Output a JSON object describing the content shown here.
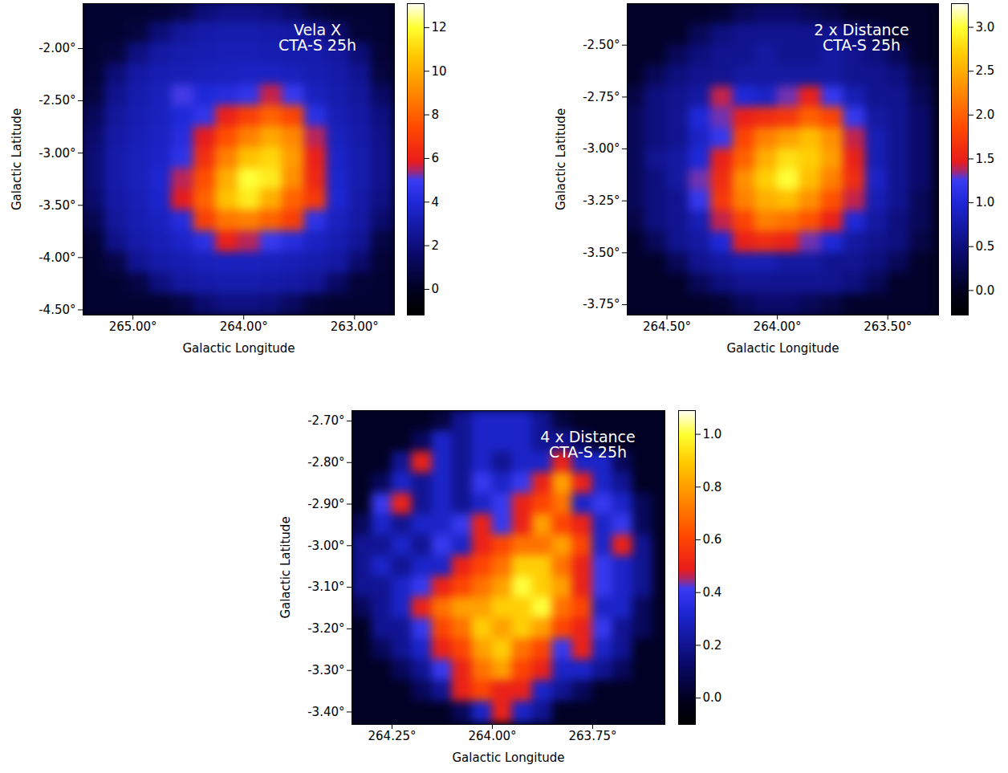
{
  "chart_data": [
    {
      "type": "heatmap",
      "annotation": "Vela X\nCTA-S 25h",
      "x_label": "Galactic Longitude",
      "y_label": "Galactic Latitude",
      "x": [
        265.35,
        265.15,
        264.95,
        264.75,
        264.55,
        264.35,
        264.15,
        263.95,
        263.75,
        263.55,
        263.35,
        263.15,
        262.95,
        262.75
      ],
      "y": [
        -1.65,
        -1.85,
        -2.05,
        -2.25,
        -2.45,
        -2.65,
        -2.85,
        -3.05,
        -3.25,
        -3.45,
        -3.65,
        -3.85,
        -4.05,
        -4.25,
        -4.45
      ],
      "values": [
        [
          0.3,
          0.3,
          0.3,
          0.4,
          0.8,
          1.8,
          2.2,
          2.2,
          2.0,
          1.5,
          0.6,
          0.3,
          0.3,
          0.3
        ],
        [
          0.3,
          0.3,
          0.6,
          1.8,
          2.6,
          2.9,
          3.0,
          3.0,
          2.9,
          2.8,
          2.5,
          1.6,
          0.4,
          0.3
        ],
        [
          0.3,
          0.6,
          2.0,
          2.8,
          3.0,
          3.1,
          3.2,
          3.2,
          3.1,
          3.0,
          3.0,
          2.7,
          1.8,
          0.4
        ],
        [
          0.4,
          1.8,
          2.8,
          3.1,
          3.2,
          3.3,
          3.4,
          3.5,
          3.5,
          3.3,
          3.1,
          2.9,
          2.4,
          0.6
        ],
        [
          0.6,
          2.3,
          3.0,
          3.3,
          5.0,
          4.0,
          4.2,
          4.6,
          5.6,
          4.8,
          3.4,
          3.0,
          2.6,
          1.4
        ],
        [
          1.2,
          2.6,
          3.1,
          3.4,
          4.0,
          4.6,
          6.0,
          7.0,
          8.0,
          7.2,
          4.4,
          3.2,
          2.8,
          2.0
        ],
        [
          1.6,
          2.8,
          3.2,
          3.5,
          4.2,
          5.8,
          7.5,
          8.8,
          9.8,
          9.0,
          5.5,
          3.4,
          2.9,
          2.2
        ],
        [
          1.8,
          2.9,
          3.3,
          3.6,
          4.5,
          6.5,
          8.8,
          10.5,
          11.0,
          9.5,
          6.0,
          3.6,
          3.0,
          2.3
        ],
        [
          1.8,
          2.9,
          3.3,
          3.8,
          5.5,
          7.5,
          10.0,
          12.0,
          11.5,
          9.2,
          6.2,
          3.7,
          3.0,
          2.3
        ],
        [
          1.6,
          2.8,
          3.2,
          3.7,
          5.8,
          8.0,
          10.5,
          11.5,
          10.0,
          8.0,
          6.8,
          3.8,
          2.9,
          2.1
        ],
        [
          1.0,
          2.6,
          3.1,
          3.4,
          4.2,
          7.0,
          8.5,
          8.8,
          8.0,
          7.0,
          4.5,
          3.4,
          2.8,
          1.6
        ],
        [
          0.4,
          2.2,
          2.9,
          3.2,
          3.6,
          4.4,
          6.0,
          5.5,
          4.8,
          4.2,
          3.5,
          3.1,
          2.5,
          0.7
        ],
        [
          0.3,
          0.8,
          2.4,
          2.9,
          3.1,
          3.3,
          3.4,
          3.4,
          3.3,
          3.2,
          3.0,
          2.8,
          1.6,
          0.4
        ],
        [
          0.3,
          0.3,
          0.7,
          2.0,
          2.7,
          2.9,
          3.0,
          3.0,
          2.9,
          2.8,
          2.5,
          1.4,
          0.4,
          0.3
        ],
        [
          0.3,
          0.3,
          0.3,
          0.3,
          0.7,
          1.6,
          2.1,
          2.1,
          1.9,
          1.3,
          0.5,
          0.3,
          0.3,
          0.3
        ]
      ],
      "xlim": [
        265.45,
        262.64
      ],
      "ylim": [
        -4.55,
        -1.57
      ],
      "xticks": [
        {
          "value": 265,
          "label": "265.00°"
        },
        {
          "value": 264,
          "label": "264.00°"
        },
        {
          "value": 263,
          "label": "263.00°"
        }
      ],
      "yticks": [
        {
          "value": -2,
          "label": "-2.00°"
        },
        {
          "value": -2.5,
          "label": "-2.50°"
        },
        {
          "value": -3,
          "label": "-3.00°"
        },
        {
          "value": -3.5,
          "label": "-3.50°"
        },
        {
          "value": -4,
          "label": "-4.00°"
        },
        {
          "value": -4.5,
          "label": "-4.50°"
        }
      ],
      "colorbar": {
        "lim": [
          -1.18,
          13.1
        ],
        "ticks": [
          0,
          2,
          4,
          6,
          8,
          10,
          12
        ]
      }
    },
    {
      "type": "heatmap",
      "annotation": "2 x Distance\nCTA-S 25h",
      "x_label": "Galactic Longitude",
      "y_label": "Galactic Latitude",
      "x": [
        264.65,
        264.55,
        264.45,
        264.35,
        264.25,
        264.15,
        264.05,
        263.95,
        263.85,
        263.75,
        263.65,
        263.55,
        263.45,
        263.35
      ],
      "y": [
        -2.35,
        -2.45,
        -2.55,
        -2.65,
        -2.75,
        -2.85,
        -2.95,
        -3.05,
        -3.15,
        -3.25,
        -3.35,
        -3.45,
        -3.55,
        -3.65,
        -3.75
      ],
      "values": [
        [
          0.05,
          0.05,
          0.05,
          0.05,
          0.1,
          0.3,
          0.4,
          0.4,
          0.3,
          0.2,
          0.05,
          0.05,
          0.05,
          0.05
        ],
        [
          0.05,
          0.05,
          0.05,
          0.3,
          0.5,
          0.6,
          0.6,
          0.6,
          0.6,
          0.6,
          0.5,
          0.3,
          0.05,
          0.05
        ],
        [
          0.05,
          0.05,
          0.3,
          0.5,
          0.6,
          0.6,
          0.7,
          0.6,
          0.6,
          0.7,
          0.6,
          0.5,
          0.3,
          0.05
        ],
        [
          0.05,
          0.3,
          0.5,
          0.6,
          0.6,
          0.7,
          0.7,
          0.7,
          0.7,
          0.7,
          0.6,
          0.6,
          0.5,
          0.2
        ],
        [
          0.2,
          0.5,
          0.6,
          0.7,
          1.4,
          1.0,
          0.9,
          1.3,
          1.5,
          1.2,
          0.8,
          0.6,
          0.6,
          0.3
        ],
        [
          0.3,
          0.5,
          0.6,
          1.0,
          1.3,
          1.5,
          1.6,
          1.7,
          2.0,
          1.8,
          1.2,
          0.7,
          0.6,
          0.4
        ],
        [
          0.3,
          0.5,
          0.6,
          0.9,
          1.2,
          1.8,
          2.2,
          2.4,
          2.6,
          2.3,
          1.4,
          0.8,
          0.6,
          0.4
        ],
        [
          0.3,
          0.6,
          0.7,
          1.0,
          1.5,
          2.0,
          2.5,
          2.8,
          2.7,
          2.4,
          1.5,
          0.8,
          0.6,
          0.4
        ],
        [
          0.3,
          0.5,
          0.7,
          1.3,
          1.6,
          2.3,
          2.7,
          3.0,
          2.6,
          2.2,
          1.6,
          0.9,
          0.6,
          0.4
        ],
        [
          0.3,
          0.5,
          0.6,
          1.2,
          1.7,
          2.2,
          2.5,
          2.6,
          2.3,
          1.9,
          1.4,
          0.8,
          0.6,
          0.3
        ],
        [
          0.2,
          0.5,
          0.6,
          0.8,
          1.4,
          1.8,
          2.2,
          2.1,
          1.9,
          1.5,
          1.0,
          0.7,
          0.5,
          0.3
        ],
        [
          0.05,
          0.3,
          0.6,
          0.7,
          1.0,
          1.5,
          1.6,
          1.5,
          1.3,
          1.0,
          0.7,
          0.6,
          0.5,
          0.2
        ],
        [
          0.05,
          0.05,
          0.3,
          0.6,
          0.7,
          0.8,
          0.8,
          0.7,
          0.7,
          0.6,
          0.6,
          0.5,
          0.3,
          0.05
        ],
        [
          0.05,
          0.05,
          0.05,
          0.3,
          0.5,
          0.6,
          0.6,
          0.6,
          0.6,
          0.6,
          0.5,
          0.3,
          0.05,
          0.05
        ],
        [
          0.05,
          0.05,
          0.05,
          0.05,
          0.1,
          0.3,
          0.4,
          0.4,
          0.3,
          0.2,
          0.05,
          0.05,
          0.05,
          0.05
        ]
      ],
      "xlim": [
        264.68,
        263.27
      ],
      "ylim": [
        -3.8,
        -2.3
      ],
      "xticks": [
        {
          "value": 264.5,
          "label": "264.50°"
        },
        {
          "value": 264,
          "label": "264.00°"
        },
        {
          "value": 263.5,
          "label": "263.50°"
        }
      ],
      "yticks": [
        {
          "value": -2.5,
          "label": "-2.50°"
        },
        {
          "value": -2.75,
          "label": "-2.75°"
        },
        {
          "value": -3,
          "label": "-3.00°"
        },
        {
          "value": -3.25,
          "label": "-3.25°"
        },
        {
          "value": -3.5,
          "label": "-3.50°"
        },
        {
          "value": -3.75,
          "label": "-3.75°"
        }
      ],
      "colorbar": {
        "lim": [
          -0.28,
          3.27
        ],
        "ticks": [
          {
            "value": 0,
            "label": "0.0"
          },
          0.5,
          {
            "value": 1,
            "label": "1.0"
          },
          1.5,
          {
            "value": 2,
            "label": "2.0"
          },
          2.5,
          {
            "value": 3,
            "label": "3.0"
          }
        ]
      }
    },
    {
      "type": "heatmap",
      "annotation": "4 x Distance\nCTA-S 25h",
      "x_label": "Galactic Longitude",
      "y_label": "Galactic Latitude",
      "x": [
        264.325,
        264.275,
        264.225,
        264.175,
        264.125,
        264.075,
        264.025,
        263.975,
        263.925,
        263.875,
        263.825,
        263.775,
        263.725,
        263.675,
        263.625,
        263.575
      ],
      "y": [
        -2.7,
        -2.75,
        -2.8,
        -2.85,
        -2.9,
        -2.95,
        -3.0,
        -3.05,
        -3.1,
        -3.15,
        -3.2,
        -3.25,
        -3.3,
        -3.35,
        -3.4
      ],
      "values": [
        [
          0,
          0,
          0,
          0,
          0.05,
          0.2,
          0.3,
          0.3,
          0.3,
          0.2,
          0.05,
          0,
          0,
          0,
          0,
          0
        ],
        [
          0,
          0,
          0,
          0.1,
          0.3,
          0.2,
          0.3,
          0.3,
          0.3,
          0.2,
          0.2,
          0.1,
          0,
          0,
          0,
          0
        ],
        [
          0,
          0,
          0.2,
          0.5,
          0.3,
          0.2,
          0.3,
          0.2,
          0.3,
          0.3,
          0.5,
          0.3,
          0.3,
          0.1,
          0,
          0
        ],
        [
          0,
          0.1,
          0.3,
          0.2,
          0.3,
          0.2,
          0.4,
          0.3,
          0.4,
          0.5,
          0.8,
          0.5,
          0.3,
          0.2,
          0,
          0
        ],
        [
          0,
          0.4,
          0.5,
          0.2,
          0.3,
          0.2,
          0.3,
          0.4,
          0.5,
          0.6,
          0.7,
          0.3,
          0.4,
          0.3,
          0.1,
          0
        ],
        [
          0.1,
          0.3,
          0.2,
          0.3,
          0.3,
          0.4,
          0.5,
          0.4,
          0.5,
          0.8,
          0.6,
          0.5,
          0.3,
          0.4,
          0.1,
          0
        ],
        [
          0.2,
          0.2,
          0.3,
          0.2,
          0.4,
          0.3,
          0.5,
          0.6,
          0.7,
          0.7,
          0.8,
          0.6,
          0.3,
          0.5,
          0.2,
          0
        ],
        [
          0.2,
          0.3,
          0.2,
          0.3,
          0.3,
          0.5,
          0.6,
          0.7,
          0.9,
          0.9,
          0.7,
          0.5,
          0.4,
          0.3,
          0.2,
          0
        ],
        [
          0.2,
          0.2,
          0.3,
          0.4,
          0.5,
          0.6,
          0.7,
          0.8,
          1.0,
          0.9,
          0.8,
          0.5,
          0.4,
          0.3,
          0.2,
          0
        ],
        [
          0.1,
          0.2,
          0.3,
          0.5,
          0.7,
          0.8,
          0.8,
          0.9,
          0.9,
          1.0,
          0.7,
          0.6,
          0.3,
          0.3,
          0.1,
          0
        ],
        [
          0,
          0.2,
          0.2,
          0.4,
          0.6,
          0.7,
          0.9,
          0.8,
          0.9,
          0.8,
          0.6,
          0.5,
          0.4,
          0.2,
          0.1,
          0
        ],
        [
          0,
          0.1,
          0.2,
          0.3,
          0.5,
          0.6,
          0.8,
          0.9,
          0.7,
          0.6,
          0.4,
          0.5,
          0.3,
          0.2,
          0,
          0
        ],
        [
          0,
          0,
          0.1,
          0.2,
          0.4,
          0.5,
          0.7,
          0.8,
          0.6,
          0.5,
          0.3,
          0.3,
          0.2,
          0.1,
          0,
          0
        ],
        [
          0,
          0,
          0,
          0.1,
          0.2,
          0.5,
          0.6,
          0.5,
          0.5,
          0.3,
          0.2,
          0.1,
          0,
          0,
          0,
          0
        ],
        [
          0,
          0,
          0,
          0,
          0,
          0.1,
          0.3,
          0.5,
          0.3,
          0.2,
          0,
          0,
          0,
          0,
          0,
          0
        ]
      ],
      "xlim": [
        264.35,
        263.57
      ],
      "ylim": [
        -3.43,
        -2.675
      ],
      "xticks": [
        {
          "value": 264.25,
          "label": "264.25°"
        },
        {
          "value": 264,
          "label": "264.00°"
        },
        {
          "value": 263.75,
          "label": "263.75°"
        }
      ],
      "yticks": [
        {
          "value": -2.7,
          "label": "-2.70°"
        },
        {
          "value": -2.8,
          "label": "-2.80°"
        },
        {
          "value": -2.9,
          "label": "-2.90°"
        },
        {
          "value": -3,
          "label": "-3.00°"
        },
        {
          "value": -3.1,
          "label": "-3.10°"
        },
        {
          "value": -3.2,
          "label": "-3.20°"
        },
        {
          "value": -3.3,
          "label": "-3.30°"
        },
        {
          "value": -3.4,
          "label": "-3.40°"
        }
      ],
      "colorbar": {
        "lim": [
          -0.1,
          1.09
        ],
        "ticks": [
          {
            "value": 0,
            "label": "0.0"
          },
          0.2,
          0.4,
          0.6,
          0.8,
          {
            "value": 1,
            "label": "1.0"
          }
        ]
      }
    }
  ]
}
